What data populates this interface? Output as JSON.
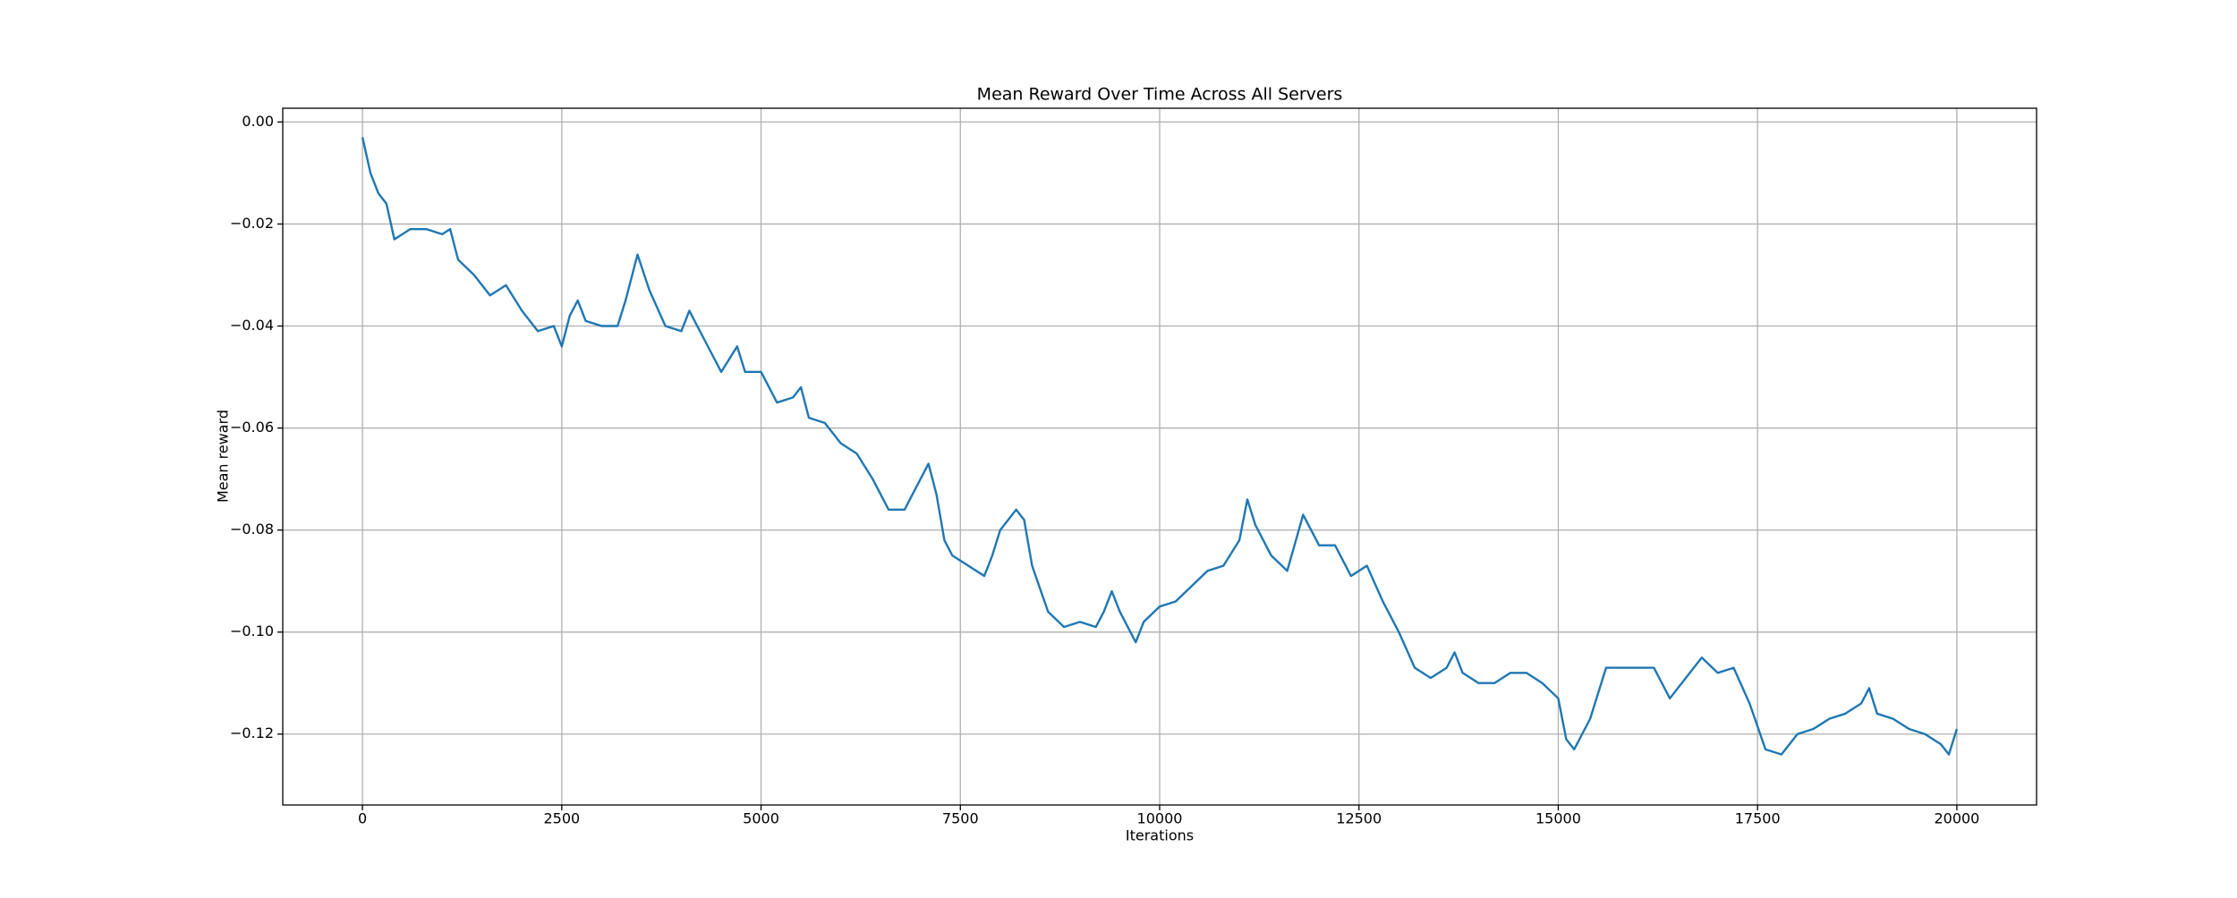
{
  "chart_data": {
    "type": "line",
    "title": "Mean Reward Over Time Across All Servers",
    "x_label": "Iterations",
    "y_label": "Mean reward",
    "xlim": [
      -1000,
      21000
    ],
    "ylim": [
      -0.1339,
      0.0027
    ],
    "xticks": [
      0,
      2500,
      5000,
      7500,
      10000,
      12500,
      15000,
      17500,
      20000
    ],
    "yticks": [
      {
        "value": 0,
        "label": "0.00"
      },
      {
        "value": -0.02,
        "label": "−0.02"
      },
      {
        "value": -0.04,
        "label": "−0.04"
      },
      {
        "value": -0.06,
        "label": "−0.06"
      },
      {
        "value": -0.08,
        "label": "−0.08"
      },
      {
        "value": -0.1,
        "label": "−0.10"
      },
      {
        "value": -0.12,
        "label": "−0.12"
      }
    ],
    "grid": true,
    "series": [
      {
        "color": "#1f77b4",
        "x": [
          0,
          100,
          200,
          300,
          400,
          500,
          600,
          800,
          1000,
          1100,
          1200,
          1400,
          1600,
          1800,
          2000,
          2200,
          2400,
          2500,
          2600,
          2700,
          2800,
          3000,
          3200,
          3300,
          3450,
          3600,
          3800,
          4000,
          4100,
          4300,
          4500,
          4700,
          4800,
          5000,
          5200,
          5400,
          5500,
          5600,
          5800,
          6000,
          6200,
          6400,
          6600,
          6800,
          7000,
          7100,
          7200,
          7300,
          7400,
          7600,
          7800,
          7900,
          8000,
          8200,
          8300,
          8400,
          8600,
          8800,
          9000,
          9200,
          9300,
          9400,
          9500,
          9700,
          9800,
          10000,
          10200,
          10400,
          10600,
          10800,
          11000,
          11100,
          11200,
          11400,
          11600,
          11800,
          12000,
          12200,
          12400,
          12600,
          12800,
          13000,
          13200,
          13400,
          13600,
          13700,
          13800,
          14000,
          14200,
          14400,
          14600,
          14800,
          15000,
          15100,
          15200,
          15400,
          15600,
          15800,
          16000,
          16200,
          16400,
          16600,
          16800,
          17000,
          17200,
          17400,
          17600,
          17800,
          18000,
          18200,
          18400,
          18600,
          18800,
          18900,
          19000,
          19200,
          19400,
          19600,
          19800,
          19900,
          20000
        ],
        "values": [
          -0.003,
          -0.01,
          -0.014,
          -0.016,
          -0.023,
          -0.022,
          -0.021,
          -0.021,
          -0.022,
          -0.021,
          -0.027,
          -0.03,
          -0.034,
          -0.032,
          -0.037,
          -0.041,
          -0.04,
          -0.044,
          -0.038,
          -0.035,
          -0.039,
          -0.04,
          -0.04,
          -0.035,
          -0.026,
          -0.033,
          -0.04,
          -0.041,
          -0.037,
          -0.043,
          -0.049,
          -0.044,
          -0.049,
          -0.049,
          -0.055,
          -0.054,
          -0.052,
          -0.058,
          -0.059,
          -0.063,
          -0.065,
          -0.07,
          -0.076,
          -0.076,
          -0.07,
          -0.067,
          -0.073,
          -0.082,
          -0.085,
          -0.087,
          -0.089,
          -0.085,
          -0.08,
          -0.076,
          -0.078,
          -0.087,
          -0.096,
          -0.099,
          -0.098,
          -0.099,
          -0.096,
          -0.092,
          -0.096,
          -0.102,
          -0.098,
          -0.095,
          -0.094,
          -0.091,
          -0.088,
          -0.087,
          -0.082,
          -0.074,
          -0.079,
          -0.085,
          -0.088,
          -0.077,
          -0.083,
          -0.083,
          -0.089,
          -0.087,
          -0.094,
          -0.1,
          -0.107,
          -0.109,
          -0.107,
          -0.104,
          -0.108,
          -0.11,
          -0.11,
          -0.108,
          -0.108,
          -0.11,
          -0.113,
          -0.121,
          -0.123,
          -0.117,
          -0.107,
          -0.107,
          -0.107,
          -0.107,
          -0.113,
          -0.109,
          -0.105,
          -0.108,
          -0.107,
          -0.114,
          -0.123,
          -0.124,
          -0.12,
          -0.119,
          -0.117,
          -0.116,
          -0.114,
          -0.111,
          -0.116,
          -0.117,
          -0.119,
          -0.12,
          -0.122,
          -0.124,
          -0.119
        ]
      }
    ]
  }
}
